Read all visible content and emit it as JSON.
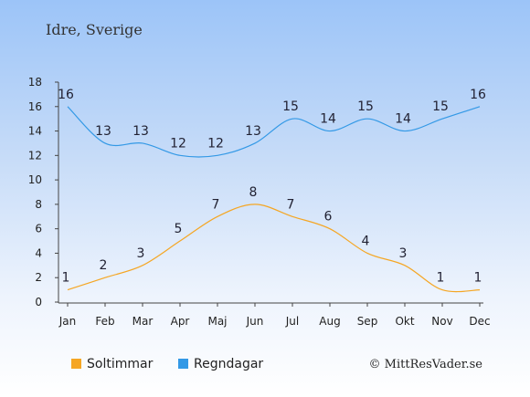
{
  "location_title": "Idre, Sverige",
  "credit": "© MittResVader.se",
  "chart_data": {
    "type": "line",
    "categories": [
      "Jan",
      "Feb",
      "Mar",
      "Apr",
      "Maj",
      "Jun",
      "Jul",
      "Aug",
      "Sep",
      "Okt",
      "Nov",
      "Dec"
    ],
    "yticks": [
      0,
      2,
      4,
      6,
      8,
      10,
      12,
      14,
      16,
      18
    ],
    "ylim": [
      0,
      18
    ],
    "grid": false,
    "legend_position": "bottom-left",
    "series": [
      {
        "name": "Soltimmar",
        "color": "#f5a623",
        "values": [
          1,
          2,
          3,
          5,
          7,
          8,
          7,
          6,
          4,
          3,
          1,
          1
        ]
      },
      {
        "name": "Regndagar",
        "color": "#3399e6",
        "values": [
          16,
          13,
          13,
          12,
          12,
          13,
          15,
          14,
          15,
          14,
          15,
          16
        ]
      }
    ]
  }
}
